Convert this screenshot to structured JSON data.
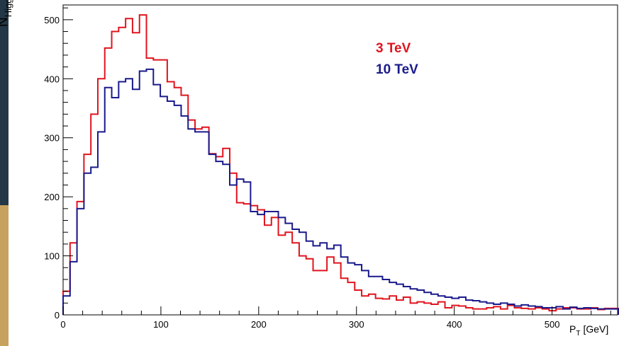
{
  "chart_data": {
    "type": "histogram",
    "xlabel": {
      "main": "P",
      "sub": "T",
      "unit": "[GeV]"
    },
    "ylabel": {
      "main": "N",
      "sub": "Higgs"
    },
    "xlim": [
      0,
      567
    ],
    "ylim": [
      0,
      525
    ],
    "bin_width": 7.1,
    "x_ticks": [
      0,
      100,
      200,
      300,
      400,
      500
    ],
    "y_ticks": [
      0,
      100,
      200,
      300,
      400,
      500
    ],
    "grid": false,
    "legend_position": "top-right",
    "series": [
      {
        "name": "3 TeV",
        "color": "#e0141e",
        "values": [
          40,
          122,
          192,
          272,
          340,
          400,
          452,
          480,
          487,
          502,
          478,
          508,
          435,
          432,
          432,
          395,
          385,
          372,
          330,
          315,
          318,
          273,
          268,
          282,
          240,
          190,
          188,
          185,
          178,
          152,
          165,
          135,
          140,
          122,
          100,
          95,
          75,
          75,
          98,
          88,
          62,
          55,
          42,
          32,
          35,
          28,
          27,
          32,
          25,
          30,
          20,
          22,
          20,
          18,
          22,
          12,
          16,
          15,
          12,
          10,
          10,
          12,
          14,
          10,
          16,
          12,
          11,
          10,
          12,
          10,
          7,
          10,
          12,
          12,
          10,
          10,
          12,
          9,
          11,
          11
        ]
      },
      {
        "name": "10 TeV",
        "color": "#1a1a8c",
        "values": [
          32,
          90,
          180,
          240,
          250,
          310,
          385,
          368,
          395,
          400,
          382,
          413,
          416,
          390,
          370,
          362,
          355,
          337,
          315,
          310,
          310,
          272,
          260,
          255,
          220,
          230,
          225,
          175,
          170,
          175,
          175,
          165,
          155,
          145,
          140,
          125,
          117,
          122,
          112,
          118,
          98,
          88,
          85,
          75,
          65,
          65,
          60,
          55,
          52,
          48,
          44,
          42,
          38,
          35,
          32,
          30,
          28,
          30,
          25,
          24,
          22,
          20,
          18,
          20,
          18,
          15,
          17,
          15,
          14,
          12,
          12,
          14,
          10,
          13,
          11,
          12,
          11,
          10,
          10,
          10
        ]
      }
    ]
  }
}
